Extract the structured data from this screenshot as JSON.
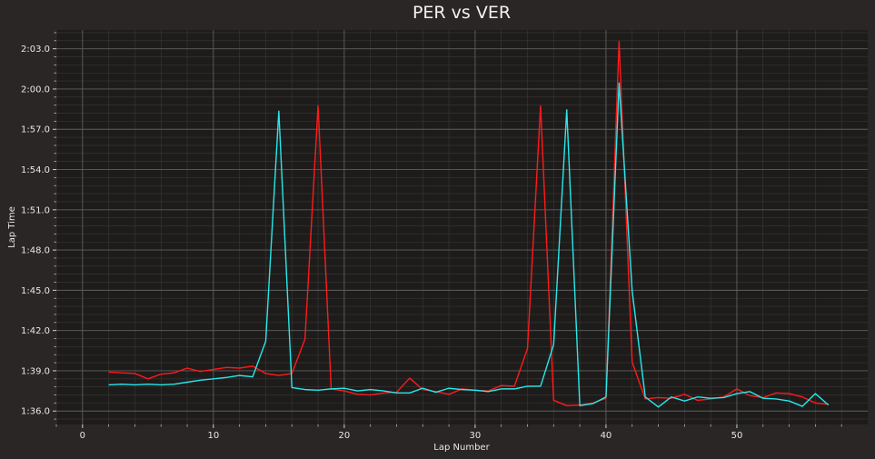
{
  "chart_data": {
    "type": "line",
    "title": "PER vs VER",
    "xlabel": "Lap Number",
    "ylabel": "Lap Time",
    "xlim": [
      -2,
      60
    ],
    "ylim": [
      95.0,
      124.4
    ],
    "x_ticks": [
      0,
      10,
      20,
      30,
      40,
      50
    ],
    "x_tick_labels": [
      "0",
      "10",
      "20",
      "30",
      "40",
      "50"
    ],
    "y_ticks": [
      96.0,
      99.0,
      102.0,
      105.0,
      108.0,
      111.0,
      114.0,
      117.0,
      120.0,
      123.0
    ],
    "y_tick_labels": [
      "1:36.0",
      "1:39.0",
      "1:42.0",
      "1:45.0",
      "1:48.0",
      "1:51.0",
      "1:54.0",
      "1:57.0",
      "2:00.0",
      "2:03.0"
    ],
    "grid": true,
    "minor_grid": true,
    "legend": "none",
    "colors": {
      "background": "#292625",
      "plot_background": "#1e1c1b",
      "major_grid": "#5f5f5f",
      "minor_grid": "#3a3837",
      "text": "#e8e8e8"
    },
    "x": [
      2,
      3,
      4,
      5,
      6,
      7,
      8,
      9,
      10,
      11,
      12,
      13,
      14,
      15,
      16,
      17,
      18,
      19,
      20,
      21,
      22,
      23,
      24,
      25,
      26,
      27,
      28,
      29,
      30,
      31,
      32,
      33,
      34,
      35,
      36,
      37,
      38,
      39,
      40,
      41,
      42,
      43,
      44,
      45,
      46,
      47,
      48,
      49,
      50,
      51,
      52,
      53,
      54,
      55,
      56,
      57
    ],
    "series": [
      {
        "color": "#ff1a1a",
        "values": [
          98.9,
          98.85,
          98.8,
          98.4,
          98.75,
          98.85,
          99.2,
          98.95,
          99.1,
          99.25,
          99.2,
          99.35,
          98.8,
          98.65,
          98.8,
          101.35,
          118.75,
          97.65,
          97.5,
          97.25,
          97.2,
          97.35,
          97.4,
          98.45,
          97.6,
          97.45,
          97.25,
          97.65,
          97.55,
          97.5,
          97.9,
          97.85,
          100.65,
          118.75,
          96.8,
          96.4,
          96.45,
          96.6,
          96.95,
          123.55,
          99.65,
          96.9,
          97.0,
          96.95,
          97.25,
          96.8,
          96.9,
          97.05,
          97.65,
          97.15,
          97.0,
          97.35,
          97.3,
          97.05,
          96.6,
          96.5
        ]
      },
      {
        "color": "#28e8ea",
        "values": [
          97.95,
          98.0,
          97.95,
          98.0,
          97.95,
          98.0,
          98.15,
          98.3,
          98.4,
          98.5,
          98.65,
          98.55,
          101.2,
          118.35,
          97.75,
          97.6,
          97.55,
          97.65,
          97.7,
          97.5,
          97.6,
          97.5,
          97.35,
          97.35,
          97.7,
          97.4,
          97.7,
          97.6,
          97.55,
          97.45,
          97.65,
          97.65,
          97.85,
          97.85,
          100.95,
          118.45,
          96.4,
          96.55,
          97.05,
          120.45,
          104.95,
          97.05,
          96.3,
          97.05,
          96.75,
          97.05,
          96.95,
          97.0,
          97.3,
          97.45,
          96.95,
          96.9,
          96.75,
          96.35,
          97.3,
          96.45
        ]
      }
    ]
  }
}
